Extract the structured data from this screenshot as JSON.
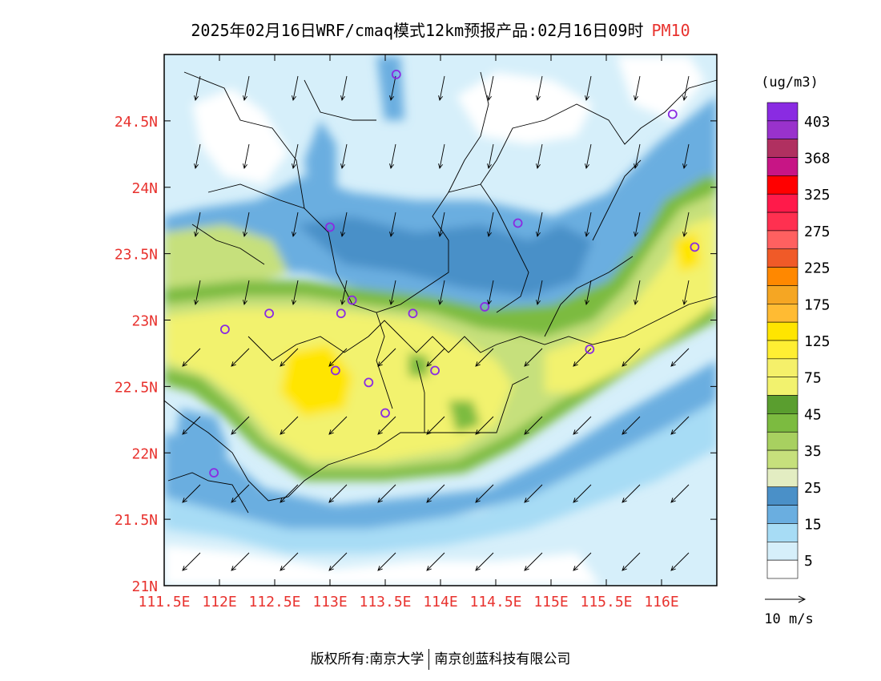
{
  "title": {
    "text": "2025年02月16日WRF/cmaq模式12km预报产品:02月16日09时",
    "variable": "PM10"
  },
  "map": {
    "lat_labels": [
      "24.5N",
      "24N",
      "23.5N",
      "23N",
      "22.5N",
      "22N",
      "21.5N",
      "21N"
    ],
    "lon_labels": [
      "111.5E",
      "112E",
      "112.5E",
      "113E",
      "113.5E",
      "114E",
      "114.5E",
      "115E",
      "115.5E",
      "116E"
    ],
    "lat_values": [
      24.5,
      24,
      23.5,
      23,
      22.5,
      22,
      21.5,
      21
    ],
    "lon_values": [
      111.5,
      112,
      112.5,
      113,
      113.5,
      114,
      114.5,
      115,
      115.5,
      116
    ],
    "lon_range": [
      111.5,
      116.5
    ],
    "lat_range": [
      21.0,
      25.0
    ],
    "label_color": "#e8322e"
  },
  "stations": [
    [
      113.6,
      24.85
    ],
    [
      116.1,
      24.55
    ],
    [
      113.0,
      23.7
    ],
    [
      114.7,
      23.73
    ],
    [
      116.3,
      23.55
    ],
    [
      112.45,
      23.05
    ],
    [
      113.2,
      23.15
    ],
    [
      113.1,
      23.05
    ],
    [
      113.75,
      23.05
    ],
    [
      114.4,
      23.1
    ],
    [
      112.05,
      22.93
    ],
    [
      113.05,
      22.62
    ],
    [
      113.35,
      22.53
    ],
    [
      113.95,
      22.62
    ],
    [
      115.35,
      22.78
    ],
    [
      113.5,
      22.3
    ],
    [
      111.95,
      21.85
    ]
  ],
  "legend": {
    "unit": "(ug/m3)",
    "labels": [
      "403",
      "368",
      "325",
      "275",
      "225",
      "175",
      "125",
      "75",
      "45",
      "35",
      "25",
      "15",
      "5"
    ],
    "colors": [
      "#8a2be2",
      "#9932cc",
      "#b03060",
      "#c71585",
      "#ff0000",
      "#ff1a4a",
      "#ff3050",
      "#ff6060",
      "#f05a28",
      "#ff8800",
      "#f5a623",
      "#ffbb33",
      "#ffe500",
      "#ffee33",
      "#f5f06a",
      "#f2f26e",
      "#5a9e2f",
      "#7cbb40",
      "#a8d060",
      "#c6e07c",
      "#e3edc2",
      "#4a90c8",
      "#6aaee0",
      "#a7dcf5",
      "#d6effa",
      "#ffffff"
    ]
  },
  "vector_legend": {
    "label": "10 m/s"
  },
  "footer": {
    "left": "版权所有:南京大学",
    "right": "南京创蓝科技有限公司"
  }
}
